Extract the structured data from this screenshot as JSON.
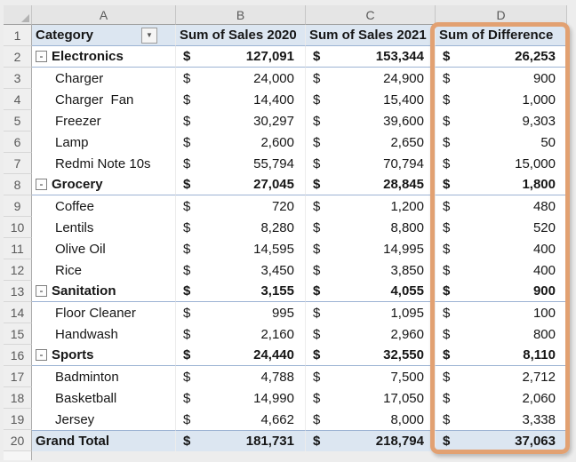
{
  "colors": {
    "highlight_border": "#e2a172",
    "header_fill": "#dce6f1",
    "grand_total_fill": "#dce6f1",
    "accent_line": "#9cb3d3"
  },
  "icons": {
    "filter_arrow": "▼",
    "collapse_glyph": "-"
  },
  "grid": {
    "column_letters": [
      "A",
      "B",
      "C",
      "D"
    ],
    "currency_symbol": "$",
    "header_row": {
      "row_number": "1",
      "category": "Category",
      "sales_2020": "Sum of Sales 2020",
      "sales_2021": "Sum of Sales 2021",
      "difference": "Sum of Difference"
    },
    "rows": [
      {
        "num": "2",
        "type": "category",
        "label": "Electronics",
        "b": "127,091",
        "c": "153,344",
        "d": "26,253"
      },
      {
        "num": "3",
        "type": "item",
        "label": "Charger",
        "b": "24,000",
        "c": "24,900",
        "d": "900"
      },
      {
        "num": "4",
        "type": "item",
        "label": "Charger  Fan",
        "b": "14,400",
        "c": "15,400",
        "d": "1,000"
      },
      {
        "num": "5",
        "type": "item",
        "label": "Freezer",
        "b": "30,297",
        "c": "39,600",
        "d": "9,303"
      },
      {
        "num": "6",
        "type": "item",
        "label": "Lamp",
        "b": "2,600",
        "c": "2,650",
        "d": "50"
      },
      {
        "num": "7",
        "type": "item",
        "label": "Redmi Note 10s",
        "b": "55,794",
        "c": "70,794",
        "d": "15,000"
      },
      {
        "num": "8",
        "type": "category",
        "label": "Grocery",
        "b": "27,045",
        "c": "28,845",
        "d": "1,800"
      },
      {
        "num": "9",
        "type": "item",
        "label": "Coffee",
        "b": "720",
        "c": "1,200",
        "d": "480"
      },
      {
        "num": "10",
        "type": "item",
        "label": "Lentils",
        "b": "8,280",
        "c": "8,800",
        "d": "520"
      },
      {
        "num": "11",
        "type": "item",
        "label": "Olive Oil",
        "b": "14,595",
        "c": "14,995",
        "d": "400"
      },
      {
        "num": "12",
        "type": "item",
        "label": "Rice",
        "b": "3,450",
        "c": "3,850",
        "d": "400"
      },
      {
        "num": "13",
        "type": "category",
        "label": "Sanitation",
        "b": "3,155",
        "c": "4,055",
        "d": "900"
      },
      {
        "num": "14",
        "type": "item",
        "label": "Floor Cleaner",
        "b": "995",
        "c": "1,095",
        "d": "100"
      },
      {
        "num": "15",
        "type": "item",
        "label": "Handwash",
        "b": "2,160",
        "c": "2,960",
        "d": "800"
      },
      {
        "num": "16",
        "type": "category",
        "label": "Sports",
        "b": "24,440",
        "c": "32,550",
        "d": "8,110"
      },
      {
        "num": "17",
        "type": "item",
        "label": "Badminton",
        "b": "4,788",
        "c": "7,500",
        "d": "2,712"
      },
      {
        "num": "18",
        "type": "item",
        "label": "Basketball",
        "b": "14,990",
        "c": "17,050",
        "d": "2,060"
      },
      {
        "num": "19",
        "type": "item",
        "label": "Jersey",
        "b": "4,662",
        "c": "8,000",
        "d": "3,338"
      },
      {
        "num": "20",
        "type": "grand",
        "label": "Grand Total",
        "b": "181,731",
        "c": "218,794",
        "d": "37,063"
      }
    ]
  }
}
